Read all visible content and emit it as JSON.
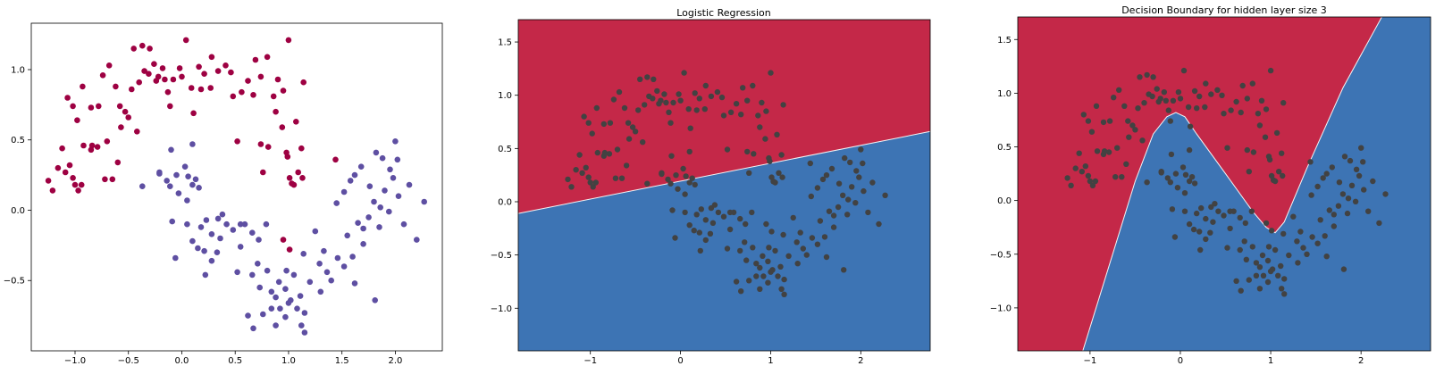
{
  "chart_data": [
    {
      "type": "scatter",
      "title": "",
      "xlabel": "",
      "ylabel": "",
      "xlim": [
        -1.41,
        2.44
      ],
      "ylim": [
        -1.0,
        1.33
      ],
      "xticks": [
        -1.0,
        -0.5,
        0.0,
        0.5,
        1.0,
        1.5,
        2.0
      ],
      "xtick_labels": [
        "−1.0",
        "−0.5",
        "0.0",
        "0.5",
        "1.0",
        "1.5",
        "2.0"
      ],
      "yticks": [
        -0.5,
        0.0,
        0.5,
        1.0
      ],
      "ytick_labels": [
        "−0.5",
        "0.0",
        "0.5",
        "1.0"
      ],
      "grid": false,
      "series": [
        {
          "color": "#9e0142",
          "points": [
            [
              -1.25,
              0.21
            ],
            [
              -1.21,
              0.14
            ],
            [
              -1.16,
              0.3
            ],
            [
              -1.12,
              0.44
            ],
            [
              -1.09,
              0.27
            ],
            [
              -1.05,
              0.32
            ],
            [
              -1.02,
              0.23
            ],
            [
              -1.0,
              0.18
            ],
            [
              -0.97,
              0.14
            ],
            [
              -0.94,
              0.18
            ],
            [
              -0.92,
              0.46
            ],
            [
              -0.85,
              0.43
            ],
            [
              -0.79,
              0.45
            ],
            [
              -0.72,
              0.22
            ],
            [
              -0.7,
              0.49
            ],
            [
              -0.65,
              0.22
            ],
            [
              -0.6,
              0.34
            ],
            [
              -0.57,
              0.59
            ],
            [
              -0.5,
              0.66
            ],
            [
              -0.42,
              0.56
            ],
            [
              -1.07,
              0.8
            ],
            [
              -1.02,
              0.74
            ],
            [
              -0.98,
              0.64
            ],
            [
              -0.93,
              0.88
            ],
            [
              -0.85,
              0.73
            ],
            [
              -0.78,
              0.74
            ],
            [
              -0.74,
              0.96
            ],
            [
              -0.68,
              1.03
            ],
            [
              -0.62,
              0.88
            ],
            [
              -0.53,
              0.7
            ],
            [
              -0.47,
              0.86
            ],
            [
              -0.4,
              0.91
            ],
            [
              -0.35,
              0.99
            ],
            [
              -0.3,
              1.15
            ],
            [
              -0.26,
              1.04
            ],
            [
              -0.22,
              0.95
            ],
            [
              -0.18,
              1.01
            ],
            [
              -0.13,
              0.84
            ],
            [
              -0.08,
              0.93
            ],
            [
              -0.02,
              1.01
            ],
            [
              0.04,
              1.21
            ],
            [
              0.09,
              0.87
            ],
            [
              0.16,
              1.02
            ],
            [
              0.21,
              0.97
            ],
            [
              0.28,
              1.09
            ],
            [
              0.34,
              0.99
            ],
            [
              0.41,
              1.03
            ],
            [
              0.48,
              0.81
            ],
            [
              0.56,
              0.84
            ],
            [
              0.62,
              0.92
            ],
            [
              -0.45,
              1.15
            ],
            [
              -0.37,
              1.17
            ],
            [
              -0.31,
              0.97
            ],
            [
              -0.16,
              0.93
            ],
            [
              -0.11,
              0.74
            ],
            [
              0.0,
              0.95
            ],
            [
              0.11,
              0.69
            ],
            [
              0.27,
              0.87
            ],
            [
              0.46,
              0.98
            ],
            [
              0.69,
              1.07
            ],
            [
              0.74,
              0.95
            ],
            [
              0.8,
              1.09
            ],
            [
              0.86,
              0.81
            ],
            [
              0.88,
              0.7
            ],
            [
              0.94,
              0.59
            ],
            [
              0.98,
              0.41
            ],
            [
              1.01,
              0.23
            ],
            [
              1.05,
              0.18
            ],
            [
              1.09,
              0.27
            ],
            [
              1.13,
              0.23
            ],
            [
              0.74,
              0.47
            ],
            [
              0.76,
              0.27
            ],
            [
              0.81,
              0.45
            ],
            [
              0.9,
              0.93
            ],
            [
              0.95,
              0.85
            ],
            [
              1.07,
              0.63
            ],
            [
              1.14,
              0.91
            ],
            [
              1.12,
              0.44
            ],
            [
              1.0,
              1.21
            ],
            [
              0.99,
              0.38
            ],
            [
              1.03,
              0.19
            ],
            [
              0.52,
              0.49
            ],
            [
              0.95,
              -0.21
            ],
            [
              1.01,
              -0.28
            ],
            [
              1.44,
              0.36
            ],
            [
              -0.84,
              0.46
            ],
            [
              -0.58,
              0.74
            ],
            [
              -0.24,
              0.92
            ],
            [
              0.18,
              0.86
            ],
            [
              0.67,
              0.82
            ]
          ]
        },
        {
          "color": "#5e4fa2",
          "points": [
            [
              -0.37,
              0.17
            ],
            [
              -0.21,
              0.27
            ],
            [
              -0.14,
              0.21
            ],
            [
              -0.11,
              0.17
            ],
            [
              -0.05,
              0.25
            ],
            [
              0.03,
              0.31
            ],
            [
              0.06,
              0.24
            ],
            [
              0.1,
              0.18
            ],
            [
              0.16,
              0.16
            ],
            [
              -0.03,
              0.12
            ],
            [
              -0.1,
              0.43
            ],
            [
              0.1,
              0.47
            ],
            [
              0.13,
              0.22
            ],
            [
              -0.21,
              0.26
            ],
            [
              0.05,
              0.07
            ],
            [
              -0.09,
              -0.08
            ],
            [
              0.05,
              -0.1
            ],
            [
              0.1,
              -0.22
            ],
            [
              0.18,
              -0.12
            ],
            [
              0.23,
              -0.07
            ],
            [
              0.28,
              -0.17
            ],
            [
              0.34,
              -0.06
            ],
            [
              0.38,
              -0.03
            ],
            [
              0.42,
              -0.1
            ],
            [
              0.48,
              -0.14
            ],
            [
              0.55,
              -0.1
            ],
            [
              0.59,
              -0.1
            ],
            [
              0.66,
              -0.16
            ],
            [
              0.72,
              -0.21
            ],
            [
              0.79,
              -0.1
            ],
            [
              -0.06,
              -0.34
            ],
            [
              0.21,
              -0.29
            ],
            [
              0.28,
              -0.36
            ],
            [
              0.22,
              -0.46
            ],
            [
              0.33,
              -0.3
            ],
            [
              0.52,
              -0.44
            ],
            [
              0.66,
              -0.46
            ],
            [
              0.71,
              -0.38
            ],
            [
              0.73,
              -0.55
            ],
            [
              0.8,
              -0.43
            ],
            [
              0.84,
              -0.58
            ],
            [
              0.88,
              -0.62
            ],
            [
              0.92,
              -0.7
            ],
            [
              0.97,
              -0.56
            ],
            [
              1.02,
              -0.64
            ],
            [
              1.08,
              -0.7
            ],
            [
              1.11,
              -0.61
            ],
            [
              1.15,
              -0.73
            ],
            [
              0.84,
              -0.7
            ],
            [
              1.0,
              -0.66
            ],
            [
              0.62,
              -0.75
            ],
            [
              0.67,
              -0.84
            ],
            [
              0.76,
              -0.74
            ],
            [
              0.88,
              -0.82
            ],
            [
              0.97,
              -0.76
            ],
            [
              1.12,
              -0.82
            ],
            [
              1.15,
              -0.87
            ],
            [
              1.2,
              -0.51
            ],
            [
              1.3,
              -0.58
            ],
            [
              1.36,
              -0.44
            ],
            [
              1.4,
              -0.5
            ],
            [
              1.46,
              -0.34
            ],
            [
              1.52,
              -0.4
            ],
            [
              1.55,
              -0.18
            ],
            [
              1.6,
              -0.33
            ],
            [
              1.65,
              -0.09
            ],
            [
              1.7,
              -0.24
            ],
            [
              1.75,
              -0.05
            ],
            [
              1.8,
              0.06
            ],
            [
              1.85,
              -0.12
            ],
            [
              1.9,
              0.14
            ],
            [
              1.94,
              -0.01
            ],
            [
              1.98,
              0.23
            ],
            [
              2.03,
              0.1
            ],
            [
              2.08,
              -0.1
            ],
            [
              2.13,
              0.18
            ],
            [
              2.2,
              -0.21
            ],
            [
              2.27,
              0.06
            ],
            [
              1.25,
              -0.15
            ],
            [
              1.29,
              -0.38
            ],
            [
              1.45,
              0.05
            ],
            [
              1.52,
              0.13
            ],
            [
              1.58,
              0.21
            ],
            [
              1.62,
              0.25
            ],
            [
              1.68,
              0.31
            ],
            [
              1.76,
              0.17
            ],
            [
              1.82,
              0.41
            ],
            [
              1.88,
              0.37
            ],
            [
              1.95,
              0.29
            ],
            [
              2.0,
              0.49
            ],
            [
              2.02,
              0.36
            ],
            [
              1.86,
              0.02
            ],
            [
              1.7,
              -0.13
            ],
            [
              1.81,
              -0.64
            ],
            [
              1.62,
              -0.52
            ],
            [
              1.33,
              -0.29
            ],
            [
              1.05,
              -0.46
            ],
            [
              0.91,
              -0.51
            ],
            [
              0.55,
              -0.26
            ],
            [
              0.36,
              -0.2
            ],
            [
              0.15,
              -0.27
            ],
            [
              0.98,
              -0.43
            ],
            [
              1.14,
              -0.31
            ]
          ]
        }
      ]
    },
    {
      "type": "heatmap",
      "title": "Logistic Regression",
      "xlabel": "",
      "ylabel": "",
      "xlim": [
        -1.8,
        2.77
      ],
      "ylim": [
        -1.4,
        1.71
      ],
      "xticks": [
        -1,
        0,
        1,
        2
      ],
      "xtick_labels": [
        "−1",
        "0",
        "1",
        "2"
      ],
      "yticks": [
        -1.0,
        -0.5,
        0.0,
        0.5,
        1.0,
        1.5
      ],
      "ytick_labels": [
        "−1.0",
        "−0.5",
        "0.0",
        "0.5",
        "1.0",
        "1.5"
      ],
      "region_colors": {
        "upper": "#c42848",
        "lower": "#3d74b4",
        "points": "#424242"
      },
      "boundary": [
        [
          -1.8,
          -0.11
        ],
        [
          2.77,
          0.66
        ]
      ]
    },
    {
      "type": "heatmap",
      "title": "Decision Boundary for hidden layer size 3",
      "xlabel": "",
      "ylabel": "",
      "xlim": [
        -1.8,
        2.77
      ],
      "ylim": [
        -1.4,
        1.71
      ],
      "xticks": [
        -1,
        0,
        1,
        2
      ],
      "xtick_labels": [
        "−1",
        "0",
        "1",
        "2"
      ],
      "yticks": [
        -1.0,
        -0.5,
        0.0,
        0.5,
        1.0,
        1.5
      ],
      "ytick_labels": [
        "−1.0",
        "−0.5",
        "0.0",
        "0.5",
        "1.0",
        "1.5"
      ],
      "region_colors": {
        "upper": "#c42848",
        "lower": "#3d74b4",
        "points": "#424242"
      },
      "boundary": [
        [
          -1.08,
          -1.4
        ],
        [
          -0.5,
          0.18
        ],
        [
          -0.3,
          0.62
        ],
        [
          -0.15,
          0.78
        ],
        [
          -0.05,
          0.82
        ],
        [
          0.05,
          0.78
        ],
        [
          0.18,
          0.62
        ],
        [
          0.5,
          0.25
        ],
        [
          0.8,
          -0.1
        ],
        [
          0.95,
          -0.25
        ],
        [
          1.05,
          -0.3
        ],
        [
          1.15,
          -0.2
        ],
        [
          1.4,
          0.3
        ],
        [
          1.8,
          1.05
        ],
        [
          2.23,
          1.71
        ]
      ]
    }
  ]
}
